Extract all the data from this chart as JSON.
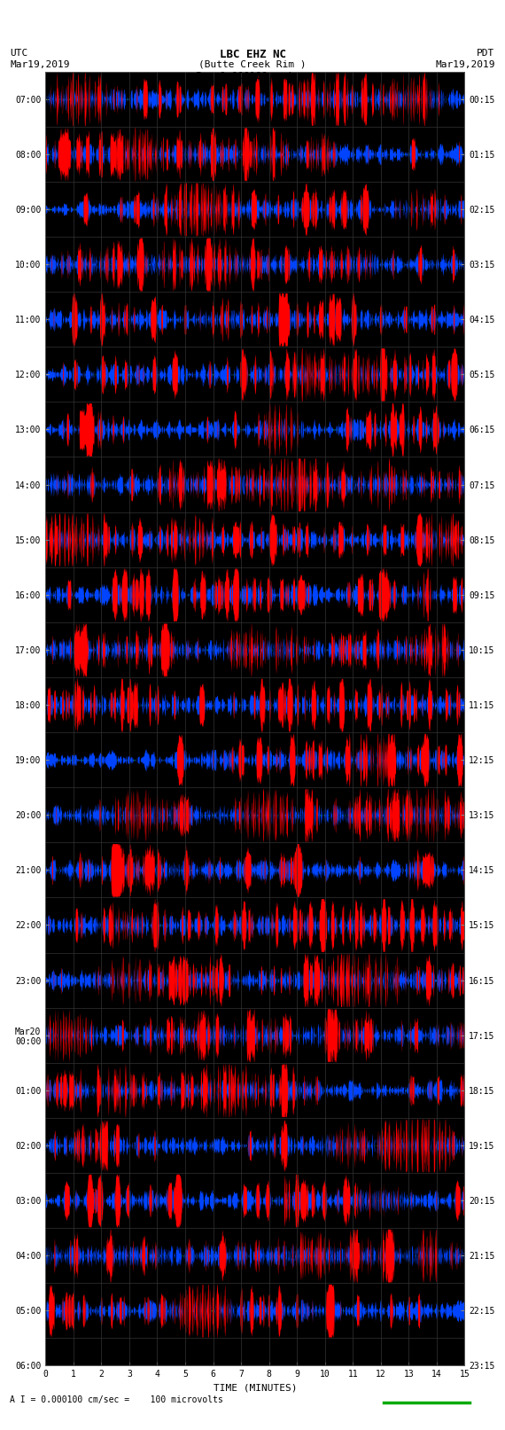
{
  "title_line1": "LBC EHZ NC",
  "title_line2": "(Butte Creek Rim )",
  "title_line3": "I = 0.000100 cm/sec",
  "left_label_line1": "UTC",
  "left_label_line2": "Mar19,2019",
  "right_label_line1": "PDT",
  "right_label_line2": "Mar19,2019",
  "xlabel": "TIME (MINUTES)",
  "bottom_label": "A I = 0.000100 cm/sec =    100 microvolts",
  "left_yticks": [
    "07:00",
    "08:00",
    "09:00",
    "10:00",
    "11:00",
    "12:00",
    "13:00",
    "14:00",
    "15:00",
    "16:00",
    "17:00",
    "18:00",
    "19:00",
    "20:00",
    "21:00",
    "22:00",
    "23:00",
    "Mar20\n00:00",
    "01:00",
    "02:00",
    "03:00",
    "04:00",
    "05:00",
    "06:00"
  ],
  "right_yticks": [
    "00:15",
    "01:15",
    "02:15",
    "03:15",
    "04:15",
    "05:15",
    "06:15",
    "07:15",
    "08:15",
    "09:15",
    "10:15",
    "11:15",
    "12:15",
    "13:15",
    "14:15",
    "15:15",
    "16:15",
    "17:15",
    "18:15",
    "19:15",
    "20:15",
    "21:15",
    "22:15",
    "23:15"
  ],
  "xticks": [
    0,
    1,
    2,
    3,
    4,
    5,
    6,
    7,
    8,
    9,
    10,
    11,
    12,
    13,
    14,
    15
  ],
  "xmin": 0,
  "xmax": 15,
  "ymin": 0,
  "ymax": 23,
  "fig_width": 5.7,
  "fig_height": 16.13,
  "dpi": 100,
  "plot_bg": "#000000",
  "fig_bg": "#ffffff",
  "font_color": "#000000",
  "title_fontsize": 9,
  "label_fontsize": 8,
  "tick_fontsize": 7,
  "green_line_color": "#00aa00",
  "seed": 42,
  "num_rows": 23,
  "minutes_per_row": 15,
  "samples_per_minute": 100,
  "color_black": "#000000",
  "color_green": "#00bb00",
  "color_blue": "#0044ff",
  "color_red": "#ff0000",
  "thresh_green": 0.04,
  "thresh_blue": 0.2,
  "thresh_red": 0.45
}
